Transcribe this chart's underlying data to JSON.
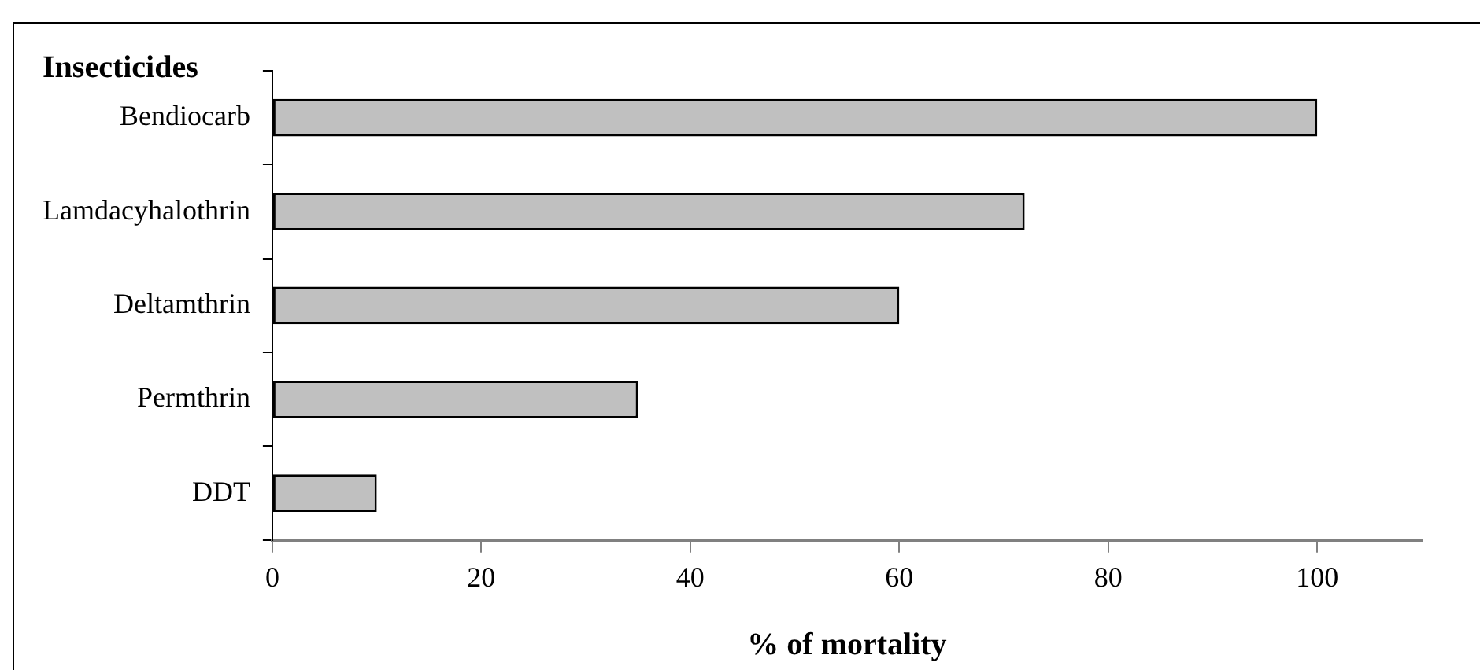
{
  "chart_data": {
    "type": "bar",
    "orientation": "horizontal",
    "ylabel": "Insecticides",
    "xlabel": "% of mortality",
    "categories": [
      "Bendiocarb",
      "Lamdacyhalothrin",
      "Deltamthrin",
      "Permthrin",
      "DDT"
    ],
    "values": [
      100,
      72,
      60,
      35,
      10
    ],
    "color": "#c0c0c0",
    "xlim": [
      0,
      110
    ],
    "xticks": [
      0,
      20,
      40,
      60,
      80,
      100
    ],
    "grid": false,
    "legend": false
  }
}
